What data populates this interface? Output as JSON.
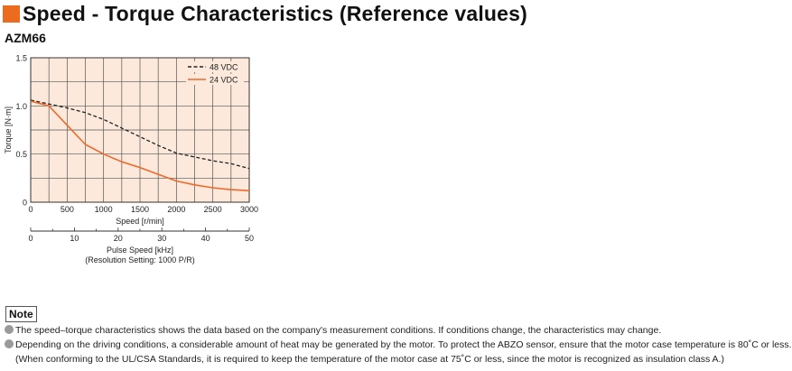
{
  "header": {
    "title": "Speed - Torque Characteristics (Reference values)",
    "accent_color": "#ec6c1f"
  },
  "model": "AZM66",
  "chart_data": {
    "type": "line",
    "x": [
      0,
      250,
      500,
      750,
      1000,
      1250,
      1500,
      1750,
      2000,
      2250,
      2500,
      2750,
      3000
    ],
    "series": [
      {
        "name": "48 VDC",
        "style": "dashed",
        "color": "#222222",
        "values": [
          1.06,
          1.02,
          0.98,
          0.93,
          0.86,
          0.77,
          0.68,
          0.59,
          0.51,
          0.47,
          0.43,
          0.4,
          0.35
        ]
      },
      {
        "name": "24 VDC",
        "style": "solid",
        "color": "#ee6a2c",
        "values": [
          1.05,
          1.0,
          0.8,
          0.6,
          0.5,
          0.42,
          0.36,
          0.29,
          0.22,
          0.18,
          0.15,
          0.13,
          0.12
        ]
      }
    ],
    "xlabel": "Speed [r/min]",
    "ylabel": "Torque [N·m]",
    "xlim": [
      0,
      3000
    ],
    "ylim": [
      0,
      1.5
    ],
    "x_ticks": [
      "0",
      "500",
      "1000",
      "1500",
      "2000",
      "2500",
      "3000"
    ],
    "y_ticks": [
      "0",
      "0.5",
      "1.0",
      "1.5"
    ],
    "grid": true,
    "background_color": "#fce9db",
    "legend_position": "top-right",
    "secondary_axis": {
      "label": "Pulse Speed [kHz]",
      "sublabel": "(Resolution Setting: 1000 P/R)",
      "ticks": [
        "0",
        "10",
        "20",
        "30",
        "40",
        "50"
      ],
      "range": [
        0,
        50
      ]
    }
  },
  "notes": {
    "label": "Note",
    "items": [
      "The speed–torque characteristics shows the data based on the company's measurement conditions. If conditions change, the characteristics may change.",
      "Depending on the driving conditions, a considerable amount of heat may be generated by the motor. To protect the ABZO sensor, ensure that the motor case temperature is 80˚C or less."
    ],
    "continuation": "(When conforming to the UL/CSA Standards, it is required to keep the temperature of the motor case at 75˚C or less, since the motor is recognized as insulation class A.)"
  }
}
